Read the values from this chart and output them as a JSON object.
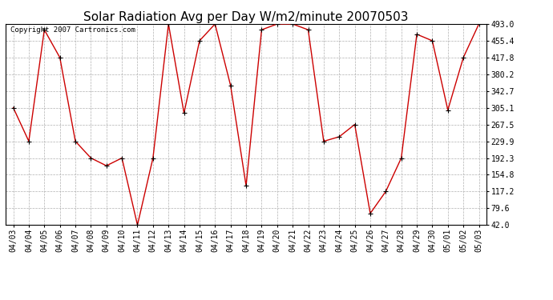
{
  "title": "Solar Radiation Avg per Day W/m2/minute 20070503",
  "copyright_text": "Copyright 2007 Cartronics.com",
  "dates": [
    "04/03",
    "04/04",
    "04/05",
    "04/06",
    "04/07",
    "04/08",
    "04/09",
    "04/10",
    "04/11",
    "04/12",
    "04/13",
    "04/14",
    "04/15",
    "04/16",
    "04/17",
    "04/18",
    "04/19",
    "04/20",
    "04/21",
    "04/22",
    "04/23",
    "04/24",
    "04/25",
    "04/26",
    "04/27",
    "04/28",
    "04/29",
    "04/30",
    "05/01",
    "05/02",
    "05/03"
  ],
  "values": [
    305.1,
    229.9,
    480.0,
    417.8,
    229.9,
    192.3,
    175.0,
    192.3,
    42.0,
    192.3,
    493.0,
    293.0,
    455.4,
    493.0,
    355.0,
    130.0,
    480.0,
    493.0,
    493.0,
    480.0,
    229.9,
    240.0,
    267.5,
    68.0,
    117.2,
    192.3,
    470.0,
    455.4,
    300.0,
    417.8,
    493.0
  ],
  "line_color": "#cc0000",
  "marker_color": "#000000",
  "bg_color": "#ffffff",
  "plot_bg_color": "#ffffff",
  "grid_color": "#b0b0b0",
  "ylim": [
    42.0,
    493.0
  ],
  "yticks": [
    42.0,
    79.6,
    117.2,
    154.8,
    192.3,
    229.9,
    267.5,
    305.1,
    342.7,
    380.2,
    417.8,
    455.4,
    493.0
  ],
  "title_fontsize": 11,
  "copyright_fontsize": 6.5,
  "tick_fontsize": 7,
  "figsize": [
    6.9,
    3.75
  ],
  "dpi": 100
}
